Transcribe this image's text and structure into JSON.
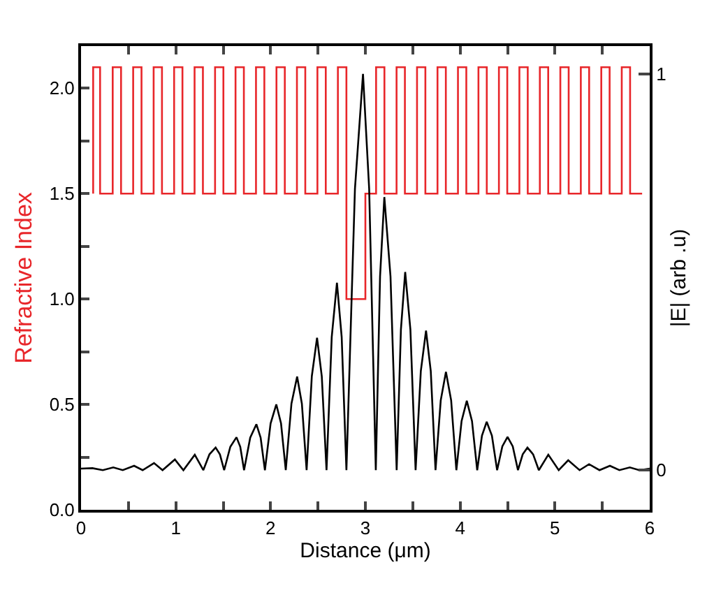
{
  "chart_data": {
    "type": "line",
    "xlabel": "Distance (μm)",
    "ylabel": "Refractive Index",
    "y2label": "|E| (arb .u)",
    "xlim": [
      0,
      6
    ],
    "xticks": [
      0,
      {
        "value": 0.5,
        "label": null
      },
      1,
      {
        "value": 1.5,
        "label": null
      },
      2,
      {
        "value": 2.5,
        "label": null
      },
      3,
      {
        "value": 3.5,
        "label": null
      },
      4,
      {
        "value": 4.5,
        "label": null
      },
      5,
      {
        "value": 5.5,
        "label": null
      },
      6
    ],
    "ylim": [
      0,
      2.2
    ],
    "yticks": [
      {
        "value": 0,
        "label": "0.0"
      },
      {
        "value": 0.25,
        "label": null
      },
      {
        "value": 0.5,
        "label": "0.5"
      },
      {
        "value": 0.75,
        "label": null
      },
      {
        "value": 1,
        "label": "1.0"
      },
      {
        "value": 1.25,
        "label": null
      },
      {
        "value": 1.5,
        "label": "1.5"
      },
      {
        "value": 1.75,
        "label": null
      },
      {
        "value": 2,
        "label": "2.0"
      }
    ],
    "y2lim": [
      -0.1,
      1.07
    ],
    "y2ticks": [
      0,
      1
    ],
    "grid": false,
    "marker": "none",
    "line_style": "solid",
    "series": [
      {
        "type": "step",
        "color": "#e8262a",
        "x": [
          0.128,
          0.128,
          0.201,
          0.334,
          0.422,
          0.55,
          0.638,
          0.766,
          0.854,
          0.982,
          1.07,
          1.198,
          1.286,
          1.414,
          1.502,
          1.63,
          1.718,
          1.846,
          1.934,
          2.062,
          2.15,
          2.278,
          2.366,
          2.494,
          2.582,
          2.71,
          2.8,
          3.0,
          3.113,
          3.201,
          3.329,
          3.417,
          3.545,
          3.633,
          3.761,
          3.849,
          3.977,
          4.065,
          4.193,
          4.281,
          4.409,
          4.497,
          4.625,
          4.713,
          4.841,
          4.929,
          5.057,
          5.145,
          5.273,
          5.361,
          5.489,
          5.577,
          5.705,
          5.793,
          5.92
        ],
        "values": [
          1.5,
          2.1,
          1.5,
          2.1,
          1.5,
          2.1,
          1.5,
          2.1,
          1.5,
          2.1,
          1.5,
          2.1,
          1.5,
          2.1,
          1.5,
          2.1,
          1.5,
          2.1,
          1.5,
          2.1,
          1.5,
          2.1,
          1.5,
          2.1,
          1.5,
          2.1,
          1.0,
          1.5,
          2.1,
          1.5,
          2.1,
          1.5,
          2.1,
          1.5,
          2.1,
          1.5,
          2.1,
          1.5,
          2.1,
          1.5,
          2.1,
          1.5,
          2.1,
          1.5,
          2.1,
          1.5,
          2.1,
          1.5,
          2.1,
          1.5,
          2.1,
          1.5,
          2.1,
          1.5,
          1.5
        ]
      },
      {
        "axis": "y2",
        "color": "#000000",
        "x": [
          0,
          0.12,
          0.23,
          0.34,
          0.44,
          0.56,
          0.65,
          0.77,
          0.86,
          0.99,
          1.08,
          1.2,
          1.29,
          1.355,
          1.42,
          1.465,
          1.51,
          1.575,
          1.64,
          1.68,
          1.72,
          1.785,
          1.85,
          1.895,
          1.94,
          2.0,
          2.06,
          2.11,
          2.16,
          2.22,
          2.28,
          2.33,
          2.38,
          2.435,
          2.49,
          2.54,
          2.59,
          2.645,
          2.7,
          2.75,
          2.8,
          2.89,
          2.975,
          3.04,
          3.11,
          3.155,
          3.2,
          3.265,
          3.33,
          3.375,
          3.42,
          3.475,
          3.53,
          3.585,
          3.64,
          3.69,
          3.74,
          3.795,
          3.85,
          3.905,
          3.96,
          4.015,
          4.07,
          4.125,
          4.18,
          4.23,
          4.28,
          4.335,
          4.39,
          4.445,
          4.5,
          4.555,
          4.61,
          4.66,
          4.71,
          4.77,
          4.83,
          4.93,
          5.04,
          5.14,
          5.26,
          5.36,
          5.47,
          5.58,
          5.68,
          5.79,
          5.89,
          6.0
        ],
        "values": [
          0.004,
          0.005,
          0,
          0.007,
          0,
          0.011,
          0,
          0.018,
          0,
          0.027,
          0,
          0.039,
          0,
          0.04,
          0.057,
          0.04,
          0,
          0.059,
          0.083,
          0.059,
          0,
          0.082,
          0.116,
          0.082,
          0,
          0.118,
          0.166,
          0.118,
          0,
          0.168,
          0.236,
          0.168,
          0,
          0.237,
          0.334,
          0.237,
          0,
          0.336,
          0.473,
          0.336,
          0,
          0.71,
          1.0,
          0.71,
          0,
          0.489,
          0.689,
          0.489,
          0,
          0.355,
          0.5,
          0.355,
          0,
          0.25,
          0.352,
          0.25,
          0,
          0.176,
          0.248,
          0.176,
          0,
          0.124,
          0.175,
          0.124,
          0,
          0.087,
          0.122,
          0.087,
          0,
          0.06,
          0.084,
          0.06,
          0,
          0.04,
          0.057,
          0.04,
          0,
          0.039,
          0,
          0.025,
          0,
          0.015,
          0,
          0.011,
          0,
          0.007,
          0,
          0.004
        ]
      }
    ]
  }
}
